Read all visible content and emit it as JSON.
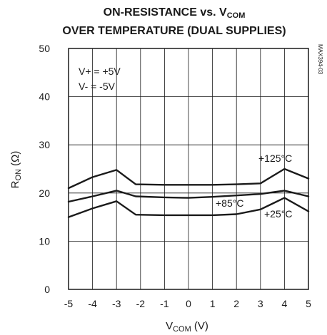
{
  "chart_data": {
    "type": "line",
    "title_line1": "ON-RESISTANCE vs. V",
    "title_line1_sub": "COM",
    "title_line2": "OVER TEMPERATURE (DUAL SUPPLIES)",
    "xlabel": "V",
    "xlabel_sub": "COM",
    "xlabel_unit": " (V)",
    "ylabel": "R",
    "ylabel_sub": "ON",
    "ylabel_unit": " (Ω)",
    "xlim": [
      -5,
      5
    ],
    "ylim": [
      0,
      50
    ],
    "x_ticks": [
      "-5",
      "-4",
      "-3",
      "-2",
      "-1",
      "0",
      "1",
      "2",
      "3",
      "4",
      "5"
    ],
    "y_ticks": [
      "0",
      "10",
      "20",
      "30",
      "40",
      "50"
    ],
    "grid": true,
    "annotations": [
      "V+ = +5V",
      "V- = -5V"
    ],
    "side_label": "MAX394-03",
    "series": [
      {
        "name": "+125°C",
        "x": [
          -5,
          -4,
          -3,
          -2.2,
          -1,
          0,
          1,
          2,
          3,
          4,
          5
        ],
        "y": [
          21,
          23.3,
          24.8,
          21.8,
          21.7,
          21.7,
          21.7,
          21.8,
          22,
          25,
          23
        ]
      },
      {
        "name": "+85°C",
        "x": [
          -5,
          -4,
          -3,
          -2.2,
          -1,
          0,
          1,
          2,
          3,
          4,
          5
        ],
        "y": [
          18.2,
          19.3,
          20.5,
          19.3,
          19.1,
          19,
          19.2,
          19.5,
          19.8,
          20.5,
          19.3
        ]
      },
      {
        "name": "+25°C",
        "x": [
          -5,
          -4,
          -3,
          -2.2,
          -1,
          0,
          1,
          2,
          3,
          4,
          5
        ],
        "y": [
          15,
          16.8,
          18.3,
          15.5,
          15.4,
          15.4,
          15.4,
          15.6,
          16.6,
          19,
          16.2
        ]
      }
    ]
  }
}
